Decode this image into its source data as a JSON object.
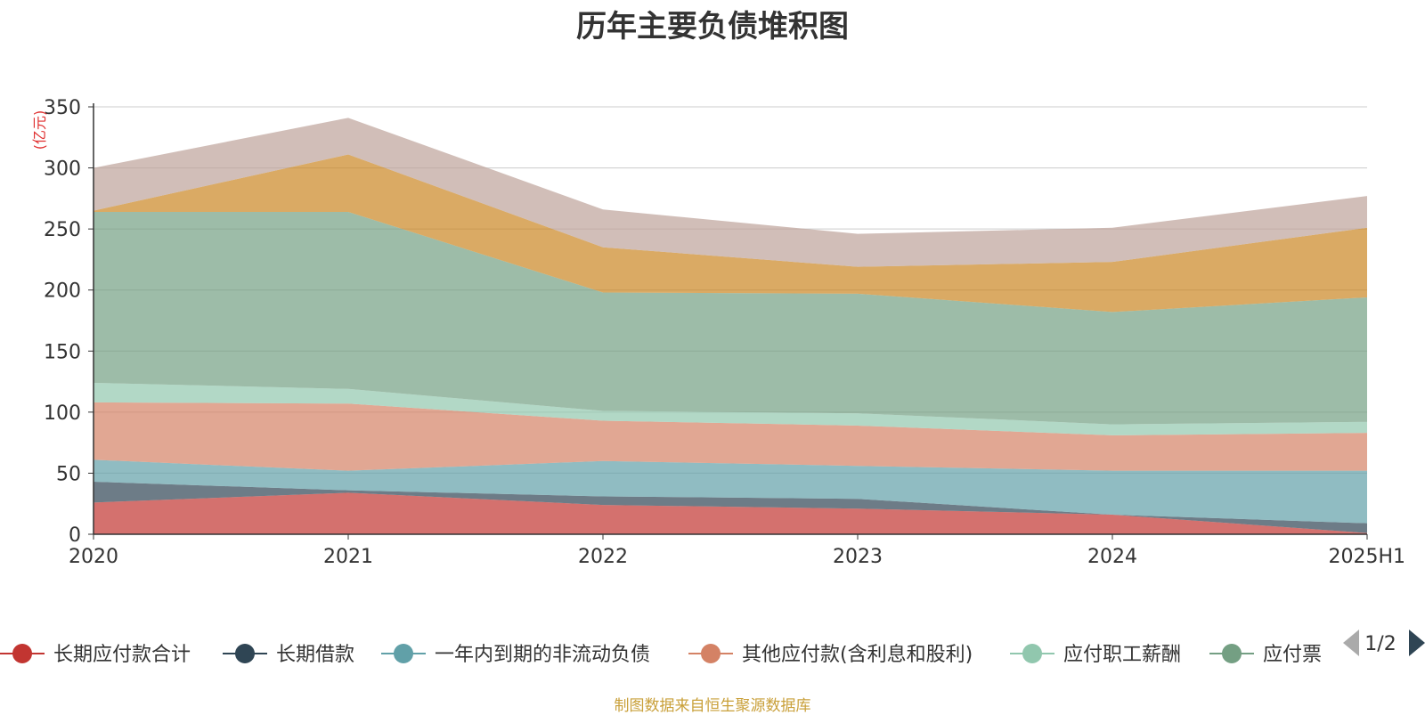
{
  "chart_data": {
    "type": "area",
    "stacked": true,
    "title": "历年主要负债堆积图",
    "y_unit": "(亿元)",
    "ylim": [
      0,
      350
    ],
    "y_ticks": [
      "0",
      "50",
      "100",
      "150",
      "200",
      "250",
      "300",
      "350"
    ],
    "grid": true,
    "categories": [
      "2020",
      "2021",
      "2022",
      "2023",
      "2024",
      "2025H1"
    ],
    "series": [
      {
        "name": "长期应付款合计",
        "color": "#c23531",
        "values": [
          26,
          34,
          24,
          21,
          16,
          1
        ]
      },
      {
        "name": "长期借款",
        "color": "#2f4554",
        "values": [
          17,
          2,
          7,
          8,
          0,
          8
        ]
      },
      {
        "name": "一年内到期的非流动负债",
        "color": "#61a0a8",
        "values": [
          18,
          16,
          29,
          27,
          36,
          43
        ]
      },
      {
        "name": "其他应付款(含利息和股利)",
        "color": "#d48265",
        "values": [
          47,
          55,
          33,
          33,
          29,
          31
        ]
      },
      {
        "name": "应付职工薪酬",
        "color": "#91c7ae",
        "values": [
          16,
          12,
          8,
          10,
          9,
          9
        ]
      },
      {
        "name": "应付票据及应付账款",
        "color": "#749f83",
        "values": [
          140,
          145,
          97,
          98,
          92,
          102
        ]
      },
      {
        "name": "",
        "color": "#ca8622",
        "values": [
          1,
          47,
          37,
          22,
          41,
          57
        ]
      },
      {
        "name": "",
        "color": "#bda29a",
        "values": [
          35,
          30,
          31,
          27,
          28,
          26
        ]
      }
    ],
    "legend": {
      "position": "bottom",
      "visible_labels": [
        "长期应付款合计",
        "长期借款",
        "一年内到期的非流动负债",
        "其他应付款(含利息和股利)",
        "应付职工薪酬",
        "应付票"
      ],
      "page": "1/2"
    },
    "source_note": "制图数据来自恒生聚源数据库"
  }
}
